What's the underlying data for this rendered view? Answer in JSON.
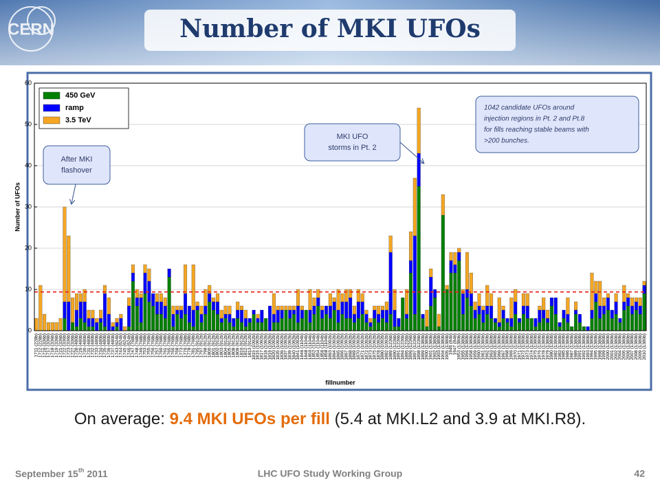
{
  "header": {
    "title": "Number of MKI UFOs"
  },
  "chart_data": {
    "type": "stacked-bar",
    "ylabel": "Number of UFOs",
    "xlabel": "fillnumber",
    "ylim": [
      0,
      60
    ],
    "yticks": [
      0,
      10,
      20,
      30,
      40,
      50,
      60
    ],
    "grid": true,
    "legend": "upper left",
    "average": 9.4,
    "average_color": "#e8231b",
    "categories": [
      "1711 (228b)",
      "1712 (228b)",
      "1716 (336b)",
      "1717 (336b)",
      "1718 (336b)",
      "1719 (336b)",
      "1721 (336b)",
      "1722 (336b)",
      "1723 (336b)",
      "1727 (336b)",
      "1728 (480b)",
      "1729 (480b)",
      "1730 (480b)",
      "1731 (480b)",
      "1732 (480b)",
      "1733 (480b)",
      "1734 (480b)",
      "1735 (480b)",
      "1736 (480b)",
      "1737 (480b)",
      "1743 (624b)",
      "1744 (624b)",
      "1745 (624b)",
      "1746 (624b)",
      "1747 (768b)",
      "1748 (768b)",
      "1749 (768b)",
      "1753 (768b)",
      "1755 (768b)",
      "1756 (768b)",
      "1757 (768b)",
      "1760 (768b)",
      "1761 (768b)",
      "1765 (768b)",
      "1766 (768b)",
      "1768 (768b)",
      "1773 (768b)",
      "1776 (768b)",
      "1778 (768b)",
      "1781 (768b)",
      "1795 (912b)",
      "1797 (912b)",
      "1798 (912b)",
      "1800 (912b)",
      "1801 (912b)",
      "1802 (912b)",
      "1803 (912b)",
      "1804 (912b)",
      "1805 (912b)",
      "1808 (912b)",
      "1809 (912b)",
      "1810 (912b)",
      "1812 (912b)",
      "1813 (912b)",
      "1815 (1092b)",
      "1816 (1092b)",
      "1817 (1092b)",
      "1818 (1092b)",
      "1819 (1092b)",
      "1820 (1092b)",
      "1835 (1092b)",
      "1836 (1092b)",
      "1837 (1092b)",
      "1839 (1092b)",
      "1840 (1092b)",
      "1841 (1092b)",
      "1846 (1104b)",
      "1848 (1104b)",
      "1850 (1104b)",
      "1852 (1104b)",
      "1854 (1104b)",
      "1856 (1104b)",
      "1858 (1104b)",
      "1863 (1092b)",
      "1864 (1092b)",
      "1865 (1092b)",
      "1866 (1092b)",
      "1867 (1092b)",
      "1868 (1092b)",
      "1869 (1092b)",
      "1870 (1092b)",
      "1871 (1092b)",
      "1872 (1092b)",
      "1873 (1092b)",
      "1875 (1092b)",
      "1878 (1092b)",
      "1880 (1092b)",
      "1882 (1092b)",
      "1889 (1236b)",
      "1890 (1236b)",
      "1891 (1236b)",
      "1894 (1236b)",
      "1895 (1236b)",
      "1896 (1236b)",
      "1897 (1236b)",
      "1898 (1236b)",
      "1899 (1380b)",
      "1900 (1380b)",
      "1901 (1380b)",
      "1902 (1380b)",
      "1903 (1380b)",
      "1904 (1380b)",
      "1905 (1380b)",
      "1946 (84b)",
      "1947 (84b)",
      "1953 (1380b)",
      "1955 (1380b)",
      "1956 (1380b)",
      "1958 (1380b)",
      "1959 (1380b)",
      "1960 (1380b)",
      "1961 (1380b)",
      "1962 (1380b)",
      "1963 (1380b)",
      "1965 (1380b)",
      "1966 (1380b)",
      "1967 (1380b)",
      "1968 (1380b)",
      "1969 (1380b)",
      "1970 (1380b)",
      "1971 (1380b)",
      "1972 (1380b)",
      "1973 (1380b)",
      "1974 (1380b)",
      "1975 (1380b)",
      "1976 (1380b)",
      "1978 (1380b)",
      "1979 (1380b)",
      "1980 (1380b)",
      "1982 (1380b)",
      "1983 (1380b)",
      "1985 (1380b)",
      "1986 (1380b)",
      "1987 (1380b)",
      "1989 (1380b)",
      "1991 (1380b)",
      "1992 (1380b)",
      "1993 (1380b)",
      "1994 (1380b)",
      "1995 (1380b)",
      "1998 (1380b)",
      "1999 (1380b)",
      "2000 (1380b)",
      "2001 (1380b)",
      "2002 (1380b)",
      "2004 (1380b)",
      "2005 (1380b)",
      "2006 (1380b)",
      "2007 (1380b)",
      "2008 (1380b)",
      "2009 (1380b)",
      "2010 (1380b)"
    ],
    "series": [
      {
        "name": "450 GeV",
        "color": "#008000",
        "values": [
          0,
          0,
          0,
          0,
          0,
          0,
          0,
          3,
          0,
          2,
          1,
          3,
          2,
          1,
          1,
          0,
          2,
          1,
          0,
          0,
          1,
          0,
          0,
          1,
          12,
          6,
          2,
          9,
          7,
          6,
          4,
          4,
          3,
          13,
          1,
          4,
          3,
          4,
          2,
          1,
          5,
          2,
          4,
          7,
          5,
          4,
          2,
          3,
          2,
          1,
          3,
          2,
          1,
          2,
          4,
          2,
          2,
          3,
          0,
          2,
          2,
          3,
          5,
          3,
          4,
          2,
          3,
          5,
          2,
          4,
          6,
          3,
          4,
          3,
          5,
          2,
          4,
          3,
          3,
          2,
          3,
          4,
          2,
          1,
          3,
          2,
          3,
          2,
          4,
          1,
          1,
          8,
          3,
          14,
          4,
          35,
          3,
          1,
          6,
          8,
          1,
          28,
          10,
          14,
          14,
          17,
          4,
          8,
          6,
          3,
          4,
          2,
          4,
          3,
          2,
          1,
          3,
          2,
          1,
          4,
          2,
          4,
          3,
          3,
          1,
          2,
          3,
          2,
          6,
          4,
          1,
          3,
          2,
          1,
          4,
          2,
          1,
          0,
          3,
          7,
          3,
          4,
          5,
          3,
          4,
          2,
          5,
          6,
          4,
          5,
          4,
          9
        ]
      },
      {
        "name": "ramp",
        "color": "#0000ff",
        "values": [
          0,
          0,
          0,
          0,
          0,
          0,
          0,
          4,
          7,
          0,
          4,
          4,
          5,
          2,
          2,
          2,
          1,
          8,
          4,
          1,
          1,
          3,
          0,
          5,
          2,
          2,
          6,
          5,
          5,
          3,
          3,
          3,
          3,
          2,
          3,
          1,
          2,
          5,
          4,
          4,
          1,
          2,
          2,
          2,
          2,
          3,
          1,
          1,
          2,
          2,
          2,
          3,
          2,
          1,
          1,
          1,
          3,
          0,
          6,
          2,
          3,
          2,
          0,
          2,
          1,
          4,
          2,
          0,
          3,
          2,
          2,
          2,
          2,
          3,
          2,
          3,
          3,
          4,
          5,
          2,
          4,
          3,
          2,
          1,
          2,
          2,
          2,
          3,
          15,
          4,
          2,
          0,
          1,
          3,
          19,
          8,
          1,
          0,
          7,
          2,
          0,
          0,
          0,
          3,
          2,
          2,
          5,
          2,
          3,
          2,
          2,
          3,
          2,
          3,
          1,
          1,
          2,
          1,
          2,
          3,
          1,
          2,
          3,
          0,
          2,
          3,
          2,
          1,
          2,
          4,
          1,
          2,
          2,
          0,
          1,
          2,
          0,
          1,
          2,
          2,
          3,
          2,
          3,
          2,
          3,
          1,
          2,
          2,
          2,
          2,
          2,
          2
        ]
      },
      {
        "name": "3.5 TeV",
        "color": "#f5a623",
        "values": [
          3,
          11,
          4,
          2,
          2,
          2,
          3,
          23,
          16,
          6,
          4,
          2,
          3,
          2,
          2,
          1,
          2,
          2,
          4,
          1,
          1,
          1,
          1,
          2,
          2,
          2,
          1,
          2,
          3,
          0,
          2,
          2,
          2,
          0,
          2,
          1,
          1,
          7,
          0,
          11,
          1,
          2,
          4,
          2,
          1,
          2,
          2,
          2,
          2,
          0,
          2,
          1,
          2,
          0,
          0,
          1,
          0,
          0,
          0,
          5,
          1,
          1,
          1,
          1,
          1,
          4,
          1,
          0,
          5,
          2,
          2,
          1,
          0,
          3,
          1,
          5,
          2,
          3,
          2,
          2,
          3,
          2,
          1,
          1,
          1,
          2,
          1,
          2,
          4,
          5,
          0,
          0,
          6,
          7,
          14,
          11,
          0,
          4,
          2,
          0,
          3,
          5,
          1,
          2,
          3,
          1,
          1,
          9,
          5,
          2,
          3,
          1,
          5,
          3,
          0,
          6,
          1,
          0,
          5,
          3,
          0,
          3,
          3,
          0,
          0,
          1,
          3,
          2,
          0,
          0,
          0,
          0,
          4,
          0,
          2,
          0,
          0,
          0,
          9,
          3,
          6,
          2,
          1,
          0,
          2,
          0,
          4,
          1,
          2,
          1,
          2,
          1
        ]
      }
    ],
    "annotations": [
      {
        "lines": [
          "After MKI",
          "flashover"
        ]
      },
      {
        "lines": [
          "MKI UFO",
          "storms in Pt. 2"
        ]
      },
      {
        "lines": [
          "1042 candidate UFOs around",
          "injection regions in Pt. 2 and Pt.8",
          "for fills reaching stable beams with",
          ">200 bunches."
        ]
      }
    ]
  },
  "summary": {
    "prefix": "On average: ",
    "highlight": "9.4 MKI UFOs per fill",
    "suffix": " (5.4 at MKI.L2 and 3.9 at MKI.R8)."
  },
  "footer": {
    "date_prefix": "September 15",
    "date_suffix": "th",
    "date_year": "2011",
    "center": "LHC UFO Study Working Group",
    "page": "42"
  }
}
